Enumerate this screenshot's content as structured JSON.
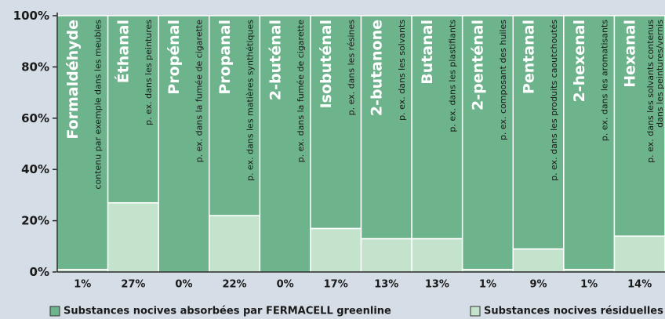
{
  "chart_data": {
    "type": "stacked_bar",
    "categories": [
      "Formaldéhyde",
      "Éthanal",
      "Propénal",
      "Propanal",
      "2-buténal",
      "Isobuténal",
      "2-butanone",
      "Butanal",
      "2-penténal",
      "Pentanal",
      "2-hexenal",
      "Hexanal"
    ],
    "descriptions": [
      [
        "contenu par exemple dans les meubles"
      ],
      [
        "p. ex. dans les peintures"
      ],
      [
        "p. ex. dans la fumée de cigarette"
      ],
      [
        "p. ex. dans les matières synthétiques"
      ],
      [
        "p. ex. dans la fumée de cigarette"
      ],
      [
        "p. ex. dans les résines"
      ],
      [
        "p. ex. dans les solvants"
      ],
      [
        "p. ex. dans les plastifiants"
      ],
      [
        "p. ex.  composant des huiles"
      ],
      [
        "p. ex. dans les produits caoutchoutés"
      ],
      [
        "p. ex. dans les aromatisants"
      ],
      [
        "p. ex. dans les solvants contenus",
        "dans les peintures/vernis"
      ]
    ],
    "series": [
      {
        "name": "Substances nocives absorbées par FERMACELL greenline",
        "color": "#6db38c",
        "values": [
          99,
          73,
          100,
          78,
          100,
          83,
          87,
          87,
          99,
          91,
          99,
          86
        ]
      },
      {
        "name": "Substances nocives résiduelles",
        "color": "#c4e3cd",
        "values": [
          1,
          27,
          0,
          22,
          0,
          17,
          13,
          13,
          1,
          9,
          1,
          14
        ],
        "value_labels": [
          "1%",
          "27%",
          "0%",
          "22%",
          "0%",
          "17%",
          "13%",
          "13%",
          "1%",
          "9%",
          "1%",
          "14%"
        ]
      }
    ],
    "ylim": [
      0,
      100
    ],
    "yticks": [
      {
        "value": 0,
        "label": "0%"
      },
      {
        "value": 20,
        "label": "20%"
      },
      {
        "value": 40,
        "label": "40%"
      },
      {
        "value": 60,
        "label": "60%"
      },
      {
        "value": 80,
        "label": "80%"
      },
      {
        "value": 100,
        "label": "100%"
      }
    ]
  }
}
